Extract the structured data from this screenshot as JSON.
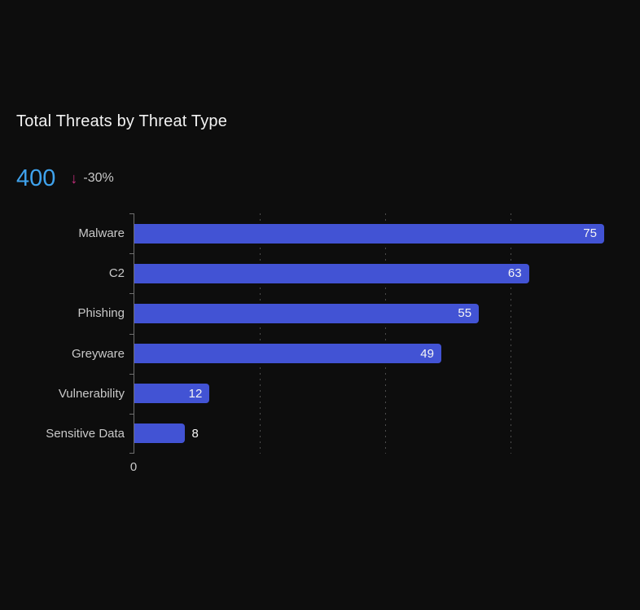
{
  "header": {
    "title": "Total Threats by Threat Type",
    "total": "400",
    "trend_arrow_glyph": "↓",
    "delta": "-30%"
  },
  "colors": {
    "background": "#0d0d0d",
    "bar": "#4253d4",
    "metric_blue": "#3fa2ec",
    "trend_pink": "#cb2e7e",
    "title_text": "#f2f2f2",
    "axis_text": "#c9c9c9",
    "axis_line": "#6e6e6e",
    "gridline": "#4d4d4d"
  },
  "chart_data": {
    "type": "bar",
    "orientation": "horizontal",
    "title": "Total Threats by Threat Type",
    "categories": [
      "Malware",
      "C2",
      "Phishing",
      "Greyware",
      "Vulnerability",
      "Sensitive Data"
    ],
    "values": [
      75,
      63,
      55,
      49,
      12,
      8
    ],
    "value_label_placement": [
      "inside",
      "inside",
      "inside",
      "inside",
      "inside",
      "outside"
    ],
    "xlabel": "",
    "ylabel": "",
    "xlim": [
      0,
      78
    ],
    "x_axis_labels": [
      "0"
    ],
    "gridlines_x": [
      20,
      40,
      60
    ],
    "grid": "dashed-vertical",
    "legend": "none"
  }
}
